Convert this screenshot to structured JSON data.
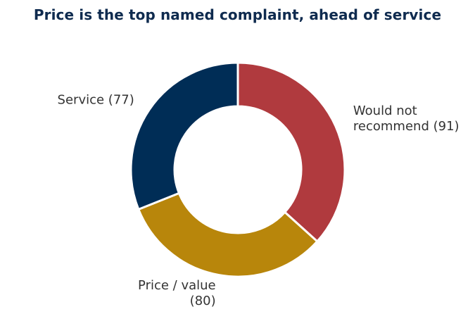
{
  "chart_data": {
    "type": "pie",
    "style": "donut",
    "title": "Price is the top named complaint, ahead of service",
    "slices": [
      {
        "label": "Would not recommend",
        "label_lines": [
          "Would not",
          "recommend (91)"
        ],
        "value": 91,
        "color": "#b03a3e"
      },
      {
        "label": "Price / value",
        "label_lines": [
          "Price / value",
          "(80)"
        ],
        "value": 80,
        "color": "#b8860b"
      },
      {
        "label": "Service",
        "label_lines": [
          "Service (77)"
        ],
        "value": 77,
        "color": "#002d56"
      }
    ],
    "start_angle": "12 o'clock",
    "direction": "clockwise",
    "legend": "none",
    "title_color": "#0f2b4f",
    "label_color": "#333333",
    "separator_color": "#ffffff"
  }
}
